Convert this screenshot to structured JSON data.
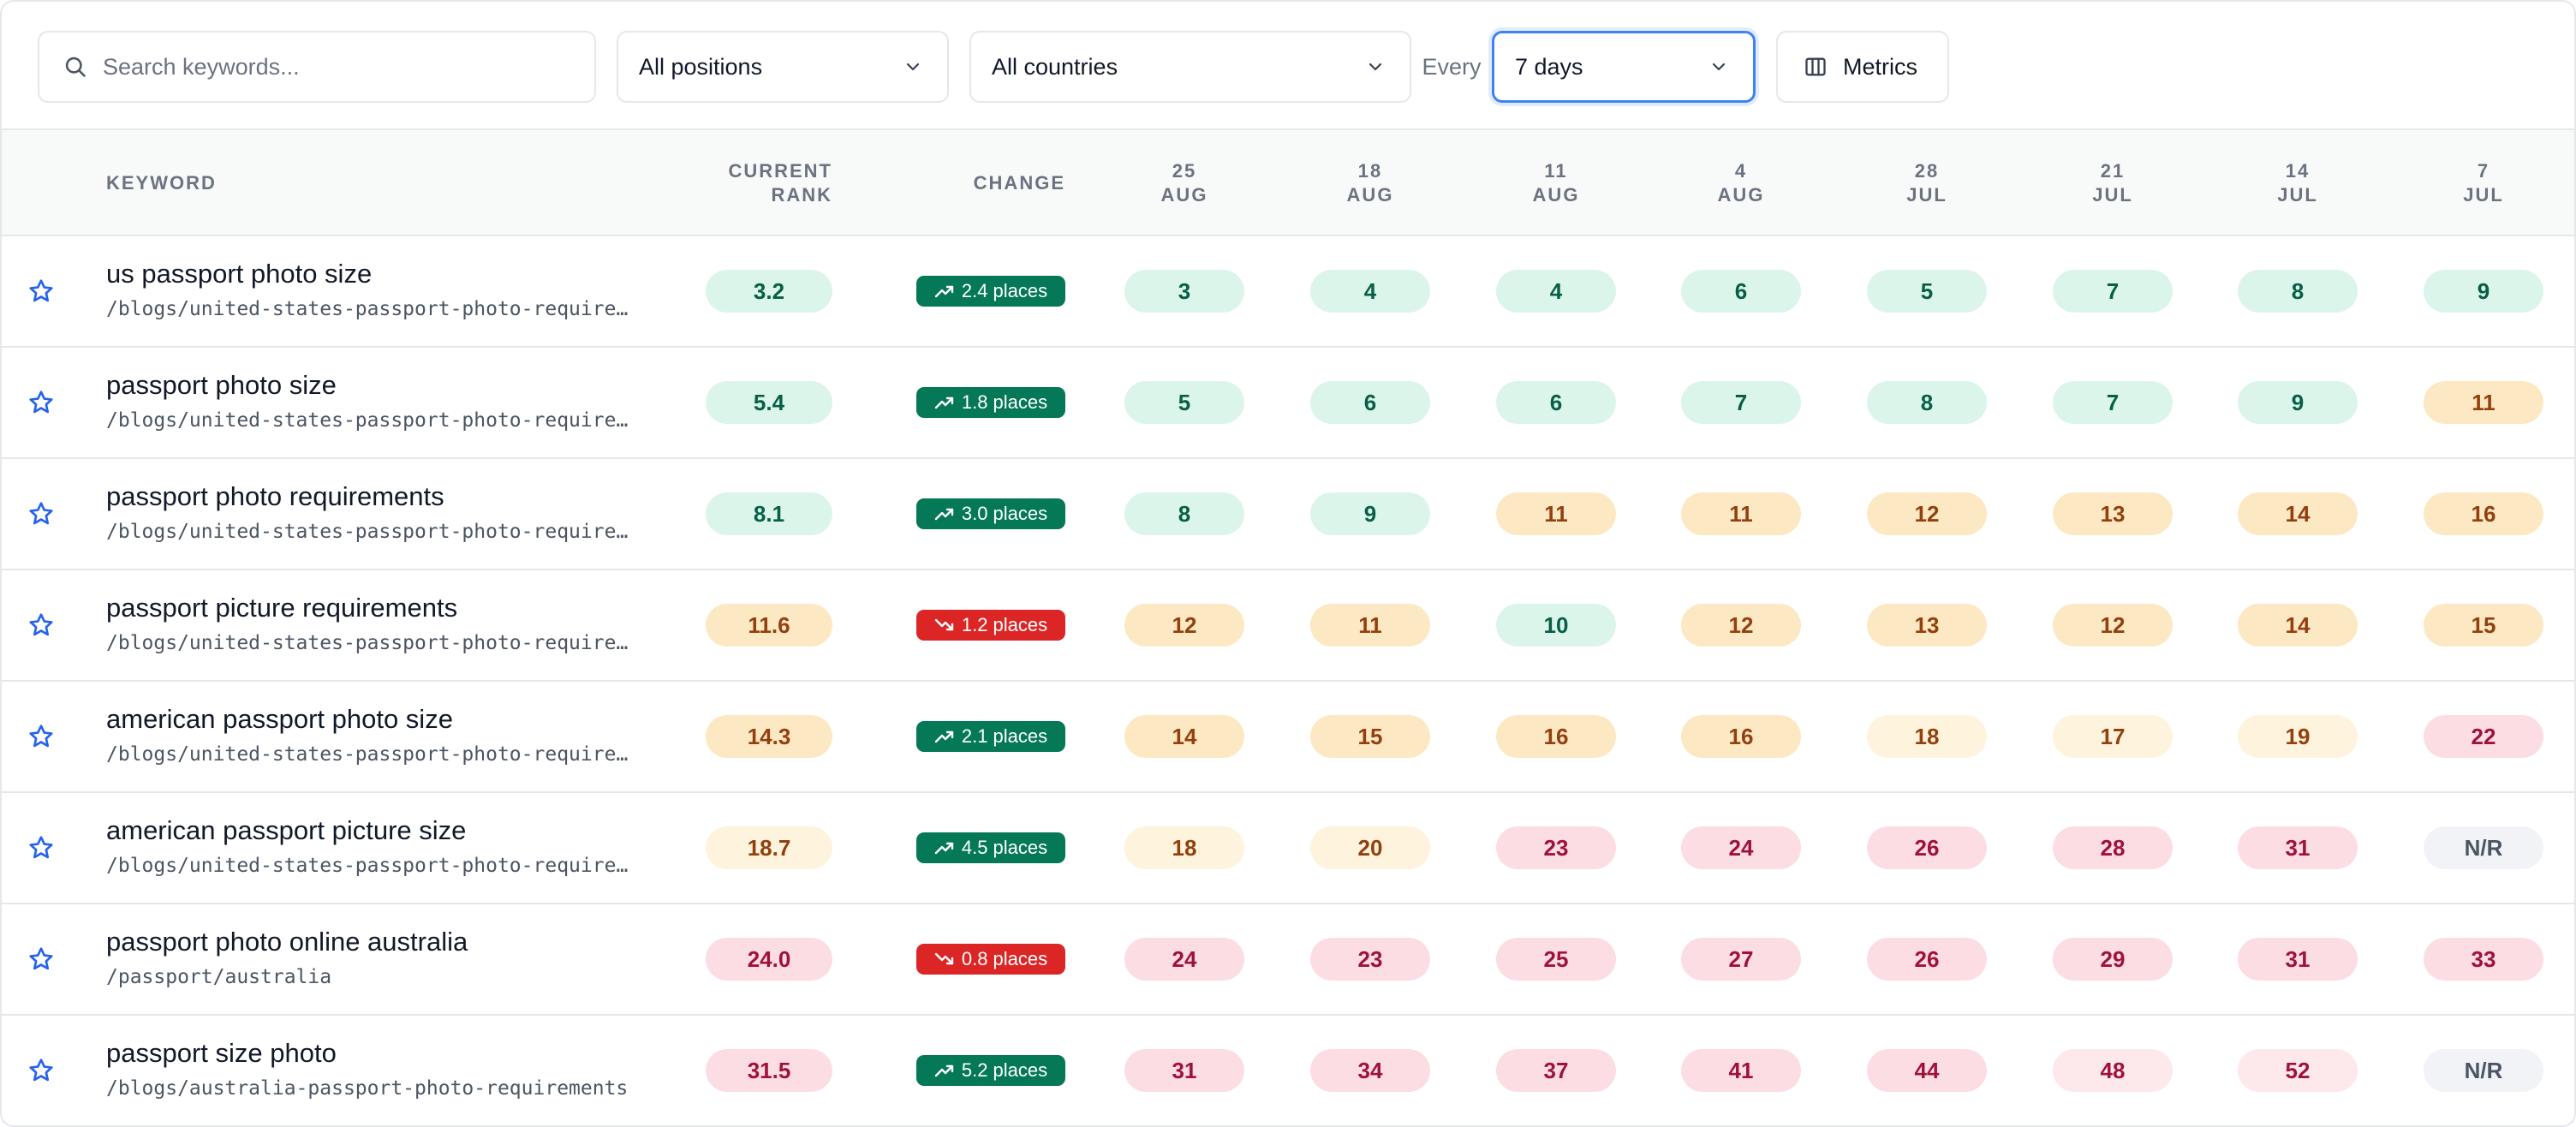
{
  "toolbar": {
    "search_placeholder": "Search keywords...",
    "positions": "All positions",
    "countries": "All countries",
    "every_label": "Every",
    "interval": "7 days",
    "metrics_label": "Metrics"
  },
  "table": {
    "headers": {
      "keyword": "KEYWORD",
      "current_rank_1": "CURRENT",
      "current_rank_2": "RANK",
      "change": "CHANGE"
    },
    "dates": [
      {
        "day": "25",
        "month": "AUG"
      },
      {
        "day": "18",
        "month": "AUG"
      },
      {
        "day": "11",
        "month": "AUG"
      },
      {
        "day": "4",
        "month": "AUG"
      },
      {
        "day": "28",
        "month": "JUL"
      },
      {
        "day": "21",
        "month": "JUL"
      },
      {
        "day": "14",
        "month": "JUL"
      },
      {
        "day": "7",
        "month": "JUL"
      }
    ],
    "rows": [
      {
        "keyword": "us passport photo size",
        "url": "/blogs/united-states-passport-photo-requirements",
        "current": "3.2",
        "current_tone": "g",
        "change": "2.4 places",
        "direction": "up",
        "history": [
          {
            "v": "3",
            "t": "g"
          },
          {
            "v": "4",
            "t": "g"
          },
          {
            "v": "4",
            "t": "g"
          },
          {
            "v": "6",
            "t": "g"
          },
          {
            "v": "5",
            "t": "g"
          },
          {
            "v": "7",
            "t": "g"
          },
          {
            "v": "8",
            "t": "g"
          },
          {
            "v": "9",
            "t": "g"
          }
        ]
      },
      {
        "keyword": "passport photo size",
        "url": "/blogs/united-states-passport-photo-requirements",
        "current": "5.4",
        "current_tone": "g",
        "change": "1.8 places",
        "direction": "up",
        "history": [
          {
            "v": "5",
            "t": "g"
          },
          {
            "v": "6",
            "t": "g"
          },
          {
            "v": "6",
            "t": "g"
          },
          {
            "v": "7",
            "t": "g"
          },
          {
            "v": "8",
            "t": "g"
          },
          {
            "v": "7",
            "t": "g"
          },
          {
            "v": "9",
            "t": "g"
          },
          {
            "v": "11",
            "t": "a"
          }
        ]
      },
      {
        "keyword": "passport photo requirements",
        "url": "/blogs/united-states-passport-photo-requirements",
        "current": "8.1",
        "current_tone": "g",
        "change": "3.0 places",
        "direction": "up",
        "history": [
          {
            "v": "8",
            "t": "g"
          },
          {
            "v": "9",
            "t": "g"
          },
          {
            "v": "11",
            "t": "a"
          },
          {
            "v": "11",
            "t": "a"
          },
          {
            "v": "12",
            "t": "a"
          },
          {
            "v": "13",
            "t": "a"
          },
          {
            "v": "14",
            "t": "a"
          },
          {
            "v": "16",
            "t": "a"
          }
        ]
      },
      {
        "keyword": "passport picture requirements",
        "url": "/blogs/united-states-passport-photo-requirements",
        "current": "11.6",
        "current_tone": "a",
        "change": "1.2 places",
        "direction": "down",
        "history": [
          {
            "v": "12",
            "t": "a"
          },
          {
            "v": "11",
            "t": "a"
          },
          {
            "v": "10",
            "t": "g"
          },
          {
            "v": "12",
            "t": "a"
          },
          {
            "v": "13",
            "t": "a"
          },
          {
            "v": "12",
            "t": "a"
          },
          {
            "v": "14",
            "t": "a"
          },
          {
            "v": "15",
            "t": "a"
          }
        ]
      },
      {
        "keyword": "american passport photo size",
        "url": "/blogs/united-states-passport-photo-requirements",
        "current": "14.3",
        "current_tone": "a",
        "change": "2.1 places",
        "direction": "up",
        "history": [
          {
            "v": "14",
            "t": "a"
          },
          {
            "v": "15",
            "t": "a"
          },
          {
            "v": "16",
            "t": "a"
          },
          {
            "v": "16",
            "t": "a"
          },
          {
            "v": "18",
            "t": "a2"
          },
          {
            "v": "17",
            "t": "a2"
          },
          {
            "v": "19",
            "t": "a2"
          },
          {
            "v": "22",
            "t": "r"
          }
        ]
      },
      {
        "keyword": "american passport picture size",
        "url": "/blogs/united-states-passport-photo-requirements",
        "current": "18.7",
        "current_tone": "a2",
        "change": "4.5 places",
        "direction": "up",
        "history": [
          {
            "v": "18",
            "t": "a2"
          },
          {
            "v": "20",
            "t": "a2"
          },
          {
            "v": "23",
            "t": "r"
          },
          {
            "v": "24",
            "t": "r"
          },
          {
            "v": "26",
            "t": "r"
          },
          {
            "v": "28",
            "t": "r"
          },
          {
            "v": "31",
            "t": "r"
          },
          {
            "v": "N/R",
            "t": "n"
          }
        ]
      },
      {
        "keyword": "passport photo online australia",
        "url": "/passport/australia",
        "current": "24.0",
        "current_tone": "r",
        "change": "0.8 places",
        "direction": "down",
        "history": [
          {
            "v": "24",
            "t": "r"
          },
          {
            "v": "23",
            "t": "r"
          },
          {
            "v": "25",
            "t": "r"
          },
          {
            "v": "27",
            "t": "r"
          },
          {
            "v": "26",
            "t": "r"
          },
          {
            "v": "29",
            "t": "r"
          },
          {
            "v": "31",
            "t": "r"
          },
          {
            "v": "33",
            "t": "r"
          }
        ]
      },
      {
        "keyword": "passport size photo",
        "url": "/blogs/australia-passport-photo-requirements",
        "current": "31.5",
        "current_tone": "r",
        "change": "5.2 places",
        "direction": "up",
        "history": [
          {
            "v": "31",
            "t": "r"
          },
          {
            "v": "34",
            "t": "r"
          },
          {
            "v": "37",
            "t": "r"
          },
          {
            "v": "41",
            "t": "r"
          },
          {
            "v": "44",
            "t": "r"
          },
          {
            "v": "48",
            "t": "r2"
          },
          {
            "v": "52",
            "t": "r2"
          },
          {
            "v": "N/R",
            "t": "n"
          }
        ]
      }
    ]
  },
  "colors": {
    "accent": "#3b82f6",
    "star": "#2563eb",
    "up": "#047857",
    "down": "#dc2626"
  }
}
